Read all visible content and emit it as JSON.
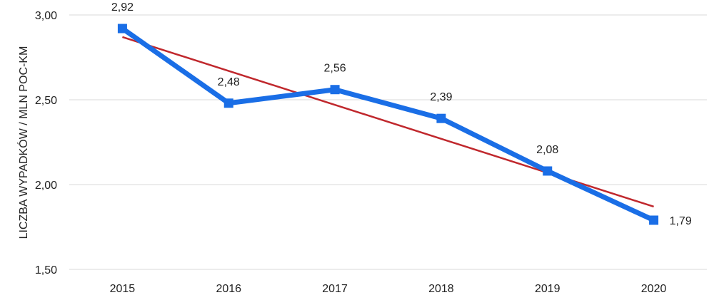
{
  "chart_data": {
    "type": "line",
    "title": "",
    "xlabel": "",
    "ylabel": "LICZBA WYPADKÓW / MLN POC-KM",
    "categories": [
      "2015",
      "2016",
      "2017",
      "2018",
      "2019",
      "2020"
    ],
    "ylim": [
      1.5,
      3.0
    ],
    "yticks": [
      1.5,
      2.0,
      2.5,
      3.0
    ],
    "ytick_labels": [
      "1,50",
      "2,00",
      "2,50",
      "3,00"
    ],
    "grid": true,
    "legend": "none",
    "series": [
      {
        "values": [
          2.92,
          2.48,
          2.56,
          2.39,
          2.08,
          1.79
        ],
        "data_labels": [
          "2,92",
          "2,48",
          "2,56",
          "2,39",
          "2,08",
          "1,79"
        ],
        "color": "#1a6ee6",
        "marker": "square"
      }
    ],
    "trendline": {
      "type": "linear",
      "start": 2.87,
      "end": 1.87,
      "color": "#c0282d"
    }
  }
}
